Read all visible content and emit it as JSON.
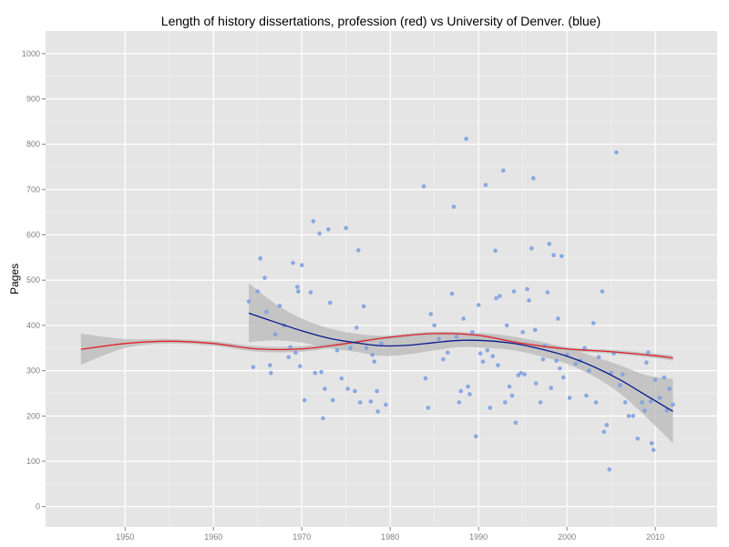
{
  "chart_data": {
    "type": "scatter",
    "title": "Length of history dissertations, profession (red) vs University of Denver. (blue)",
    "xlabel": "",
    "ylabel": "Pages",
    "xlim": [
      1941,
      2017
    ],
    "ylim": [
      -45,
      1050
    ],
    "x_ticks": [
      1950,
      1960,
      1970,
      1980,
      1990,
      2000,
      2010
    ],
    "y_ticks": [
      0,
      100,
      200,
      300,
      400,
      500,
      600,
      700,
      800,
      900,
      1000
    ],
    "grid": true,
    "legend": "none",
    "colors": {
      "panel": "#e5e5e5",
      "grid_major": "#ffffff",
      "grid_minor": "#f2f2f2",
      "points": "#7ea1e0",
      "profession_line": "#e0212b",
      "denver_line": "#0a1a8c",
      "ribbon": "#b8b8b8"
    },
    "series": [
      {
        "kind": "points",
        "values": [
          [
            1964,
            453
          ],
          [
            1964.5,
            308
          ],
          [
            1965,
            475
          ],
          [
            1965.3,
            548
          ],
          [
            1965.8,
            505
          ],
          [
            1966,
            430
          ],
          [
            1966.4,
            312
          ],
          [
            1966.5,
            295
          ],
          [
            1967,
            380
          ],
          [
            1967.5,
            443
          ],
          [
            1968,
            400
          ],
          [
            1968.5,
            330
          ],
          [
            1968.7,
            352
          ],
          [
            1969,
            538
          ],
          [
            1969.3,
            340
          ],
          [
            1969.5,
            485
          ],
          [
            1969.6,
            475
          ],
          [
            1969.8,
            310
          ],
          [
            1970,
            533
          ],
          [
            1970.3,
            235
          ],
          [
            1971,
            473
          ],
          [
            1971.3,
            630
          ],
          [
            1971.5,
            295
          ],
          [
            1972,
            603
          ],
          [
            1972.2,
            297
          ],
          [
            1972.4,
            195
          ],
          [
            1972.6,
            260
          ],
          [
            1973,
            612
          ],
          [
            1973.2,
            450
          ],
          [
            1973.5,
            235
          ],
          [
            1974,
            345
          ],
          [
            1974.5,
            283
          ],
          [
            1975,
            615
          ],
          [
            1975.2,
            260
          ],
          [
            1975.5,
            350
          ],
          [
            1976,
            255
          ],
          [
            1976.2,
            395
          ],
          [
            1976.4,
            566
          ],
          [
            1976.6,
            230
          ],
          [
            1977,
            442
          ],
          [
            1977.3,
            350
          ],
          [
            1977.8,
            232
          ],
          [
            1978,
            335
          ],
          [
            1978.2,
            320
          ],
          [
            1978.5,
            255
          ],
          [
            1978.6,
            210
          ],
          [
            1979,
            360
          ],
          [
            1979.5,
            225
          ],
          [
            1983.8,
            707
          ],
          [
            1984,
            283
          ],
          [
            1984.3,
            218
          ],
          [
            1984.6,
            425
          ],
          [
            1985,
            400
          ],
          [
            1985.5,
            370
          ],
          [
            1986,
            325
          ],
          [
            1986.5,
            340
          ],
          [
            1987,
            470
          ],
          [
            1987.2,
            662
          ],
          [
            1987.5,
            375
          ],
          [
            1987.8,
            230
          ],
          [
            1988,
            255
          ],
          [
            1988.3,
            415
          ],
          [
            1988.6,
            812
          ],
          [
            1988.8,
            265
          ],
          [
            1989,
            248
          ],
          [
            1989.3,
            385
          ],
          [
            1989.7,
            155
          ],
          [
            1990,
            445
          ],
          [
            1990.2,
            338
          ],
          [
            1990.5,
            320
          ],
          [
            1990.8,
            710
          ],
          [
            1991,
            345
          ],
          [
            1991.3,
            218
          ],
          [
            1991.6,
            332
          ],
          [
            1991.9,
            565
          ],
          [
            1992,
            460
          ],
          [
            1992.2,
            312
          ],
          [
            1992.4,
            465
          ],
          [
            1992.8,
            742
          ],
          [
            1993,
            230
          ],
          [
            1993.2,
            400
          ],
          [
            1993.5,
            265
          ],
          [
            1993.8,
            245
          ],
          [
            1994,
            475
          ],
          [
            1994.2,
            185
          ],
          [
            1994.5,
            290
          ],
          [
            1994.8,
            295
          ],
          [
            1995,
            385
          ],
          [
            1995.2,
            292
          ],
          [
            1995.5,
            480
          ],
          [
            1995.7,
            455
          ],
          [
            1996,
            570
          ],
          [
            1996.2,
            725
          ],
          [
            1996.4,
            390
          ],
          [
            1996.5,
            272
          ],
          [
            1997,
            230
          ],
          [
            1997.3,
            325
          ],
          [
            1997.5,
            355
          ],
          [
            1997.8,
            473
          ],
          [
            1998,
            580
          ],
          [
            1998.2,
            262
          ],
          [
            1998.5,
            555
          ],
          [
            1998.8,
            322
          ],
          [
            1999,
            415
          ],
          [
            1999.2,
            305
          ],
          [
            1999.4,
            553
          ],
          [
            1999.6,
            285
          ],
          [
            2000,
            335
          ],
          [
            2000.3,
            240
          ],
          [
            2001,
            315
          ],
          [
            2001.5,
            322
          ],
          [
            2002,
            350
          ],
          [
            2002.2,
            245
          ],
          [
            2002.5,
            300
          ],
          [
            2003,
            405
          ],
          [
            2003.3,
            230
          ],
          [
            2003.6,
            330
          ],
          [
            2004,
            475
          ],
          [
            2004.2,
            165
          ],
          [
            2004.5,
            180
          ],
          [
            2004.8,
            82
          ],
          [
            2005,
            295
          ],
          [
            2005.3,
            338
          ],
          [
            2005.6,
            782
          ],
          [
            2006,
            268
          ],
          [
            2006.3,
            292
          ],
          [
            2006.6,
            230
          ],
          [
            2007,
            200
          ],
          [
            2007.5,
            200
          ],
          [
            2008,
            150
          ],
          [
            2008.5,
            230
          ],
          [
            2008.8,
            212
          ],
          [
            2009,
            318
          ],
          [
            2009.2,
            340
          ],
          [
            2009.5,
            232
          ],
          [
            2009.6,
            140
          ],
          [
            2009.8,
            125
          ],
          [
            2010,
            280
          ],
          [
            2010.5,
            240
          ],
          [
            2011,
            285
          ],
          [
            2011.3,
            212
          ],
          [
            2011.6,
            260
          ],
          [
            2012,
            225
          ]
        ]
      },
      {
        "kind": "smooth",
        "color_key": "profession_line",
        "x": [
          1945,
          1950,
          1955,
          1960,
          1965,
          1970,
          1975,
          1980,
          1985,
          1990,
          1995,
          2000,
          2005,
          2010,
          2012
        ],
        "y": [
          347,
          360,
          365,
          360,
          348,
          348,
          360,
          374,
          382,
          378,
          360,
          348,
          342,
          333,
          328
        ],
        "band_lower": [
          313,
          350,
          360,
          355,
          342,
          342,
          355,
          370,
          378,
          374,
          356,
          344,
          338,
          328,
          322
        ],
        "band_upper": [
          382,
          370,
          370,
          365,
          354,
          354,
          365,
          378,
          386,
          382,
          364,
          352,
          346,
          338,
          334
        ]
      },
      {
        "kind": "smooth",
        "color_key": "denver_line",
        "x": [
          1964,
          1967,
          1970,
          1973,
          1976,
          1979,
          1982,
          1985,
          1988,
          1991,
          1994,
          1997,
          2000,
          2003,
          2006,
          2009,
          2012
        ],
        "y": [
          427,
          407,
          388,
          372,
          362,
          355,
          356,
          362,
          367,
          366,
          360,
          348,
          332,
          309,
          280,
          245,
          210
        ],
        "band_lower": [
          363,
          367,
          362,
          350,
          342,
          333,
          336,
          345,
          352,
          350,
          345,
          332,
          315,
          288,
          250,
          197,
          140
        ],
        "band_upper": [
          493,
          448,
          415,
          394,
          382,
          377,
          376,
          380,
          383,
          382,
          375,
          364,
          350,
          332,
          312,
          290,
          282
        ]
      }
    ]
  }
}
